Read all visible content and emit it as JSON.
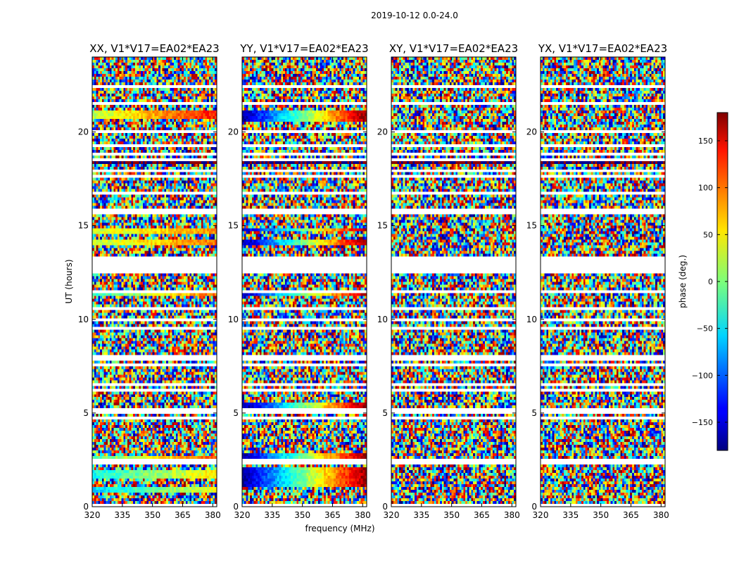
{
  "suptitle": "2019-10-12 0.0-24.0",
  "xlabel": "frequency (MHz)",
  "ylabel": "UT (hours)",
  "colorbar": {
    "label": "phase (deg.)",
    "range": [
      -180,
      180
    ],
    "ticks": [
      -150,
      -100,
      -50,
      0,
      50,
      100,
      150
    ],
    "tick_labels": [
      "−150",
      "−100",
      "−50",
      "0",
      "50",
      "100",
      "150"
    ],
    "colormap": "jet"
  },
  "chart_data": [
    {
      "type": "heatmap",
      "title": "XX, V1*V17=EA02*EA23",
      "xlim": [
        320,
        382
      ],
      "ylim": [
        0,
        24
      ],
      "x_ticks": [
        320,
        335,
        350,
        365,
        380
      ],
      "y_ticks": [
        0,
        5,
        10,
        15,
        20
      ],
      "value_range": [
        -180,
        180
      ],
      "bands": [
        {
          "t0": 0.8,
          "t1": 1.0,
          "p0": -60,
          "p1": 40
        },
        {
          "t0": 1.5,
          "t1": 1.9,
          "p0": -40,
          "p1": 50
        },
        {
          "t0": 2.3,
          "t1": 2.7,
          "p0": -20,
          "p1": 110
        },
        {
          "t0": 4.9,
          "t1": 5.3,
          "p0": 10,
          "p1": 95
        },
        {
          "t0": 11.2,
          "t1": 11.4,
          "p0": -35,
          "p1": 100
        },
        {
          "t0": 14.0,
          "t1": 14.3,
          "p0": 20,
          "p1": 95
        },
        {
          "t0": 14.6,
          "t1": 14.8,
          "p0": 30,
          "p1": 80
        },
        {
          "t0": 20.7,
          "t1": 21.1,
          "p0": 20,
          "p1": 130
        }
      ]
    },
    {
      "type": "heatmap",
      "title": "YY, V1*V17=EA02*EA23",
      "xlim": [
        320,
        382
      ],
      "ylim": [
        0,
        24
      ],
      "x_ticks": [
        320,
        335,
        350,
        365,
        380
      ],
      "y_ticks": [
        0,
        5,
        10,
        15,
        20
      ],
      "value_range": [
        -180,
        180
      ],
      "bands": [
        {
          "t0": 1.0,
          "t1": 2.1,
          "p0": -170,
          "p1": 170
        },
        {
          "t0": 2.3,
          "t1": 2.8,
          "p0": -165,
          "p1": 170
        },
        {
          "t0": 4.9,
          "t1": 5.5,
          "p0": -175,
          "p1": 175
        },
        {
          "t0": 11.2,
          "t1": 11.4,
          "p0": -160,
          "p1": 160
        },
        {
          "t0": 13.9,
          "t1": 14.3,
          "p0": -170,
          "p1": 170
        },
        {
          "t0": 14.7,
          "t1": 14.8,
          "p0": -160,
          "p1": 160
        },
        {
          "t0": 20.6,
          "t1": 21.1,
          "p0": -170,
          "p1": 170
        }
      ]
    },
    {
      "type": "heatmap",
      "title": "XY, V1*V17=EA02*EA23",
      "xlim": [
        320,
        382
      ],
      "ylim": [
        0,
        24
      ],
      "x_ticks": [
        320,
        335,
        350,
        365,
        380
      ],
      "y_ticks": [
        0,
        5,
        10,
        15,
        20
      ],
      "value_range": [
        -180,
        180
      ],
      "bands": []
    },
    {
      "type": "heatmap",
      "title": "YX, V1*V17=EA02*EA23",
      "xlim": [
        320,
        382
      ],
      "ylim": [
        0,
        24
      ],
      "x_ticks": [
        320,
        335,
        350,
        365,
        380
      ],
      "y_ticks": [
        0,
        5,
        10,
        15,
        20
      ],
      "value_range": [
        -180,
        180
      ],
      "bands": []
    }
  ]
}
